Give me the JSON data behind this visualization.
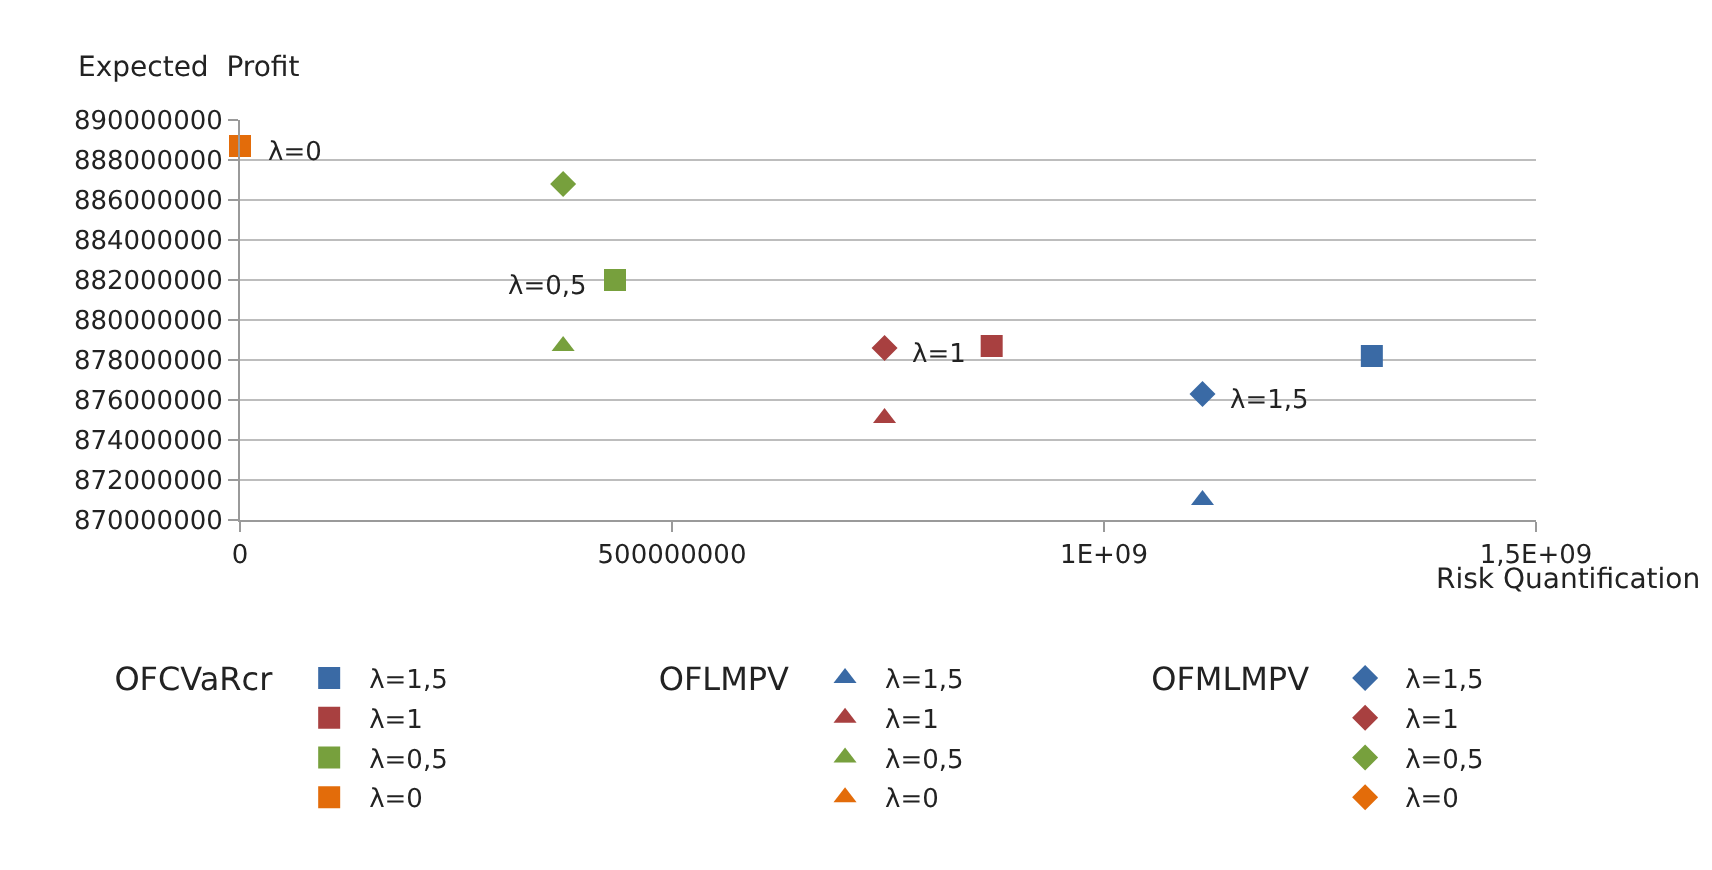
{
  "chart_data": {
    "type": "scatter",
    "xlabel": "Risk Quantification",
    "ylabel": "Expected  Profit",
    "xlim": [
      0,
      1500000000
    ],
    "xticks": [
      0,
      500000000,
      {
        "value": 1000000000,
        "label": "1E+09"
      },
      {
        "value": 1500000000,
        "label": "1,5E+09"
      }
    ],
    "ylim": [
      870000000,
      890000000
    ],
    "yticks": [
      870000000,
      872000000,
      874000000,
      876000000,
      878000000,
      880000000,
      882000000,
      884000000,
      886000000,
      888000000,
      890000000
    ],
    "grid": "y",
    "legend": "bottom",
    "legend_title": [
      "OFCVaRcr",
      "OFLMPV",
      "OFMLMPV"
    ],
    "series": [
      {
        "name": "λ=1,5",
        "marker": "square",
        "color": "#3a6aa5",
        "x": [
          1310000000
        ],
        "values": [
          878200000
        ]
      },
      {
        "name": "λ=1",
        "marker": "square",
        "color": "#a84040",
        "x": [
          870000000
        ],
        "values": [
          878700000
        ]
      },
      {
        "name": "λ=0,5",
        "marker": "square",
        "color": "#77a03d",
        "x": [
          434000000
        ],
        "values": [
          882000000
        ]
      },
      {
        "name": "λ=0",
        "marker": "square",
        "color": "#e36c0a",
        "x": [
          0
        ],
        "values": [
          888700000
        ]
      },
      {
        "name": "λ=1,5",
        "marker": "triangle",
        "color": "#3a6aa5",
        "x": [
          1114000000
        ],
        "values": [
          871000000
        ]
      },
      {
        "name": "λ=1",
        "marker": "triangle",
        "color": "#a84040",
        "x": [
          746000000
        ],
        "values": [
          875100000
        ]
      },
      {
        "name": "λ=0,5",
        "marker": "triangle",
        "color": "#77a03d",
        "x": [
          374000000
        ],
        "values": [
          878700000
        ]
      },
      {
        "name": "λ=0",
        "marker": "triangle",
        "color": "#e36c0a",
        "values": [
          null
        ]
      },
      {
        "name": "λ=1,5",
        "marker": "diamond",
        "color": "#3a6aa5",
        "x": [
          1114000000
        ],
        "values": [
          876300000
        ]
      },
      {
        "name": "λ=1",
        "marker": "diamond",
        "color": "#a84040",
        "x": [
          746000000
        ],
        "values": [
          878600000
        ]
      },
      {
        "name": "λ=0,5",
        "marker": "diamond",
        "color": "#77a03d",
        "x": [
          374000000
        ],
        "values": [
          886800000
        ]
      },
      {
        "name": "λ=0",
        "marker": "diamond",
        "color": "#e36c0a",
        "values": [
          null
        ]
      }
    ],
    "annotations": [
      {
        "text": "λ=0",
        "x": 0,
        "y": 888700000
      },
      {
        "text": "λ=0,5",
        "x": 434000000,
        "y": 882000000
      },
      {
        "text": "λ=1",
        "x": 746000000,
        "y": 878600000
      },
      {
        "text": "λ=1,5",
        "x": 1114000000,
        "y": 876300000
      }
    ]
  }
}
